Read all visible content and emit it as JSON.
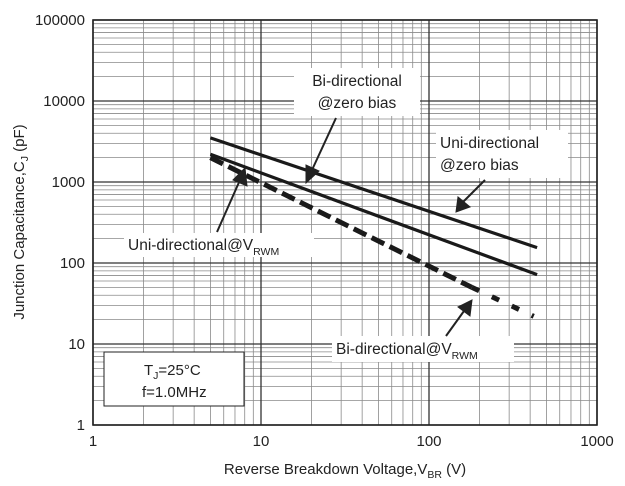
{
  "chart_data": {
    "type": "line",
    "x_scale": "log",
    "y_scale": "log",
    "xlim": [
      1,
      1000
    ],
    "ylim": [
      1,
      100000
    ],
    "grid": true,
    "x_ticks": [
      "1",
      "10",
      "100",
      "1000"
    ],
    "y_ticks": [
      "1",
      "10",
      "100",
      "1000",
      "10000",
      "100000"
    ],
    "xlabel": {
      "main": "Reverse  Breakdown Voltage,V",
      "sub": "BR",
      "tail": " (V)"
    },
    "ylabel": {
      "main": "Junction Capacitance,C",
      "sub": "J",
      "tail": " (pF)"
    },
    "conditions": {
      "line1": {
        "main": "T",
        "sub": "J",
        "tail": "=25°C"
      },
      "line2": "f=1.0MHz"
    },
    "series": [
      {
        "key": "bi_zero",
        "style": "solid",
        "x": [
          5,
          440
        ],
        "y": [
          3500,
          155
        ]
      },
      {
        "key": "uni_zero",
        "style": "solid",
        "x": [
          5,
          440
        ],
        "y": [
          2200,
          72
        ]
      },
      {
        "key": "uni_vrwm",
        "style": "dashed",
        "x": [
          5,
          180
        ],
        "y": [
          2000,
          50
        ]
      },
      {
        "key": "bi_vrwm",
        "style": "dotted",
        "x": [
          180,
          420
        ],
        "y": [
          50,
          22
        ]
      }
    ],
    "annotations": [
      {
        "key": "bi_zero_label",
        "lines": [
          "Bi-directional",
          "@zero bias"
        ]
      },
      {
        "key": "uni_zero_label",
        "lines": [
          "Uni-directional",
          "@zero bias"
        ]
      },
      {
        "key": "uni_vrwm_label",
        "main": "Uni-directional@V",
        "sub": "RWM"
      },
      {
        "key": "bi_vrwm_label",
        "main": "Bi-directional@V",
        "sub": "RWM"
      }
    ]
  }
}
